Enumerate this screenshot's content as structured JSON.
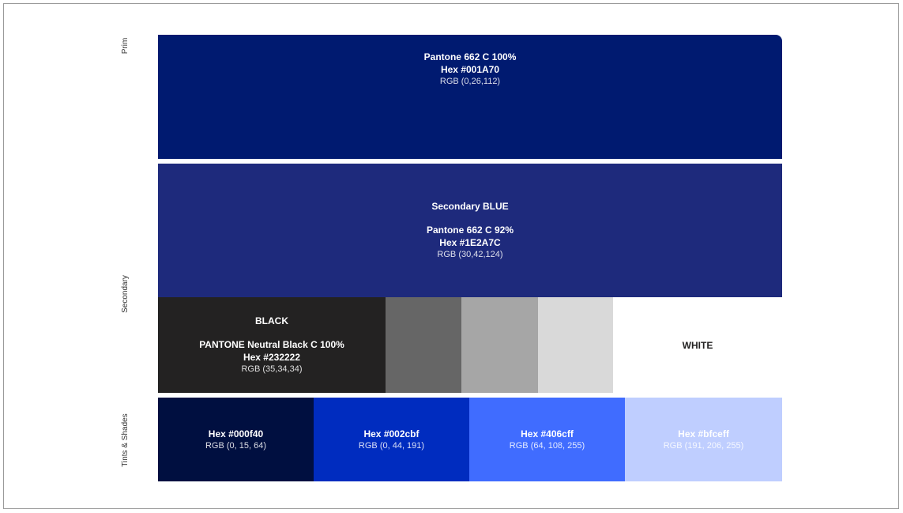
{
  "labels": {
    "primary": "Prim",
    "secondary": "Secondary",
    "tints": "Tints & Shades"
  },
  "primary": {
    "pantone": "Pantone 662 C 100%",
    "hex": "Hex #001A70",
    "rgb": "RGB (0,26,112)",
    "color": "#001A70"
  },
  "secondary_blue": {
    "title": "Secondary BLUE",
    "pantone": "Pantone 662 C 92%",
    "hex": "Hex #1E2A7C",
    "rgb": "RGB (30,42,124)",
    "color": "#1E2A7C"
  },
  "black": {
    "title": "BLACK",
    "pantone": "PANTONE Neutral Black C 100%",
    "hex": "Hex #232222",
    "rgb": "RGB (35,34,34)",
    "color": "#232222"
  },
  "greys": [
    "#666666",
    "#a6a6a6",
    "#d9d9d9"
  ],
  "white": {
    "title": "WHITE",
    "color": "#ffffff"
  },
  "tints": [
    {
      "hex": "Hex #000f40",
      "rgb": "RGB (0, 15, 64)",
      "color": "#000f40"
    },
    {
      "hex": "Hex #002cbf",
      "rgb": "RGB (0, 44, 191)",
      "color": "#002cbf"
    },
    {
      "hex": "Hex #406cff",
      "rgb": "RGB (64, 108, 255)",
      "color": "#406cff"
    },
    {
      "hex": "Hex #bfceff",
      "rgb": "RGB (191, 206, 255)",
      "color": "#bfceff"
    }
  ]
}
